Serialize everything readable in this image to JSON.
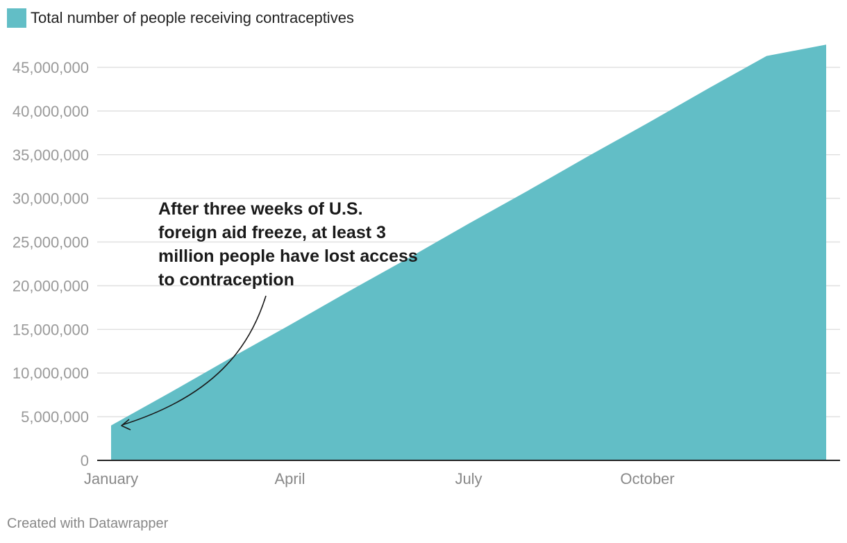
{
  "legend": {
    "label": "Total number of people receiving contraceptives"
  },
  "footer": "Created with Datawrapper",
  "annotation": "After three weeks of U.S. foreign aid freeze, at least 3 million people have lost access to contraception",
  "colors": {
    "area": "#62bec6",
    "grid": "#e0e0e0",
    "axis": "#222222",
    "tick_text": "#999999"
  },
  "chart_data": {
    "type": "area",
    "series": [
      {
        "name": "Total number of people receiving contraceptives",
        "x": [
          0,
          1,
          2,
          3,
          4,
          5,
          6,
          7,
          8,
          9,
          10,
          11,
          12
        ],
        "values": [
          4000000,
          7800000,
          11700000,
          15500000,
          19400000,
          23200000,
          27100000,
          30900000,
          34800000,
          38600000,
          42500000,
          46300000,
          47600000
        ]
      }
    ],
    "x_ticks": [
      {
        "label": "January",
        "x": 0
      },
      {
        "label": "April",
        "x": 3
      },
      {
        "label": "July",
        "x": 6
      },
      {
        "label": "October",
        "x": 9
      }
    ],
    "xlim": [
      0,
      12
    ],
    "ylim": [
      0,
      45000000
    ],
    "y_ticks": [
      {
        "value": 0,
        "label": "0"
      },
      {
        "value": 5000000,
        "label": "5,000,000"
      },
      {
        "value": 10000000,
        "label": "10,000,000"
      },
      {
        "value": 15000000,
        "label": "15,000,000"
      },
      {
        "value": 20000000,
        "label": "20,000,000"
      },
      {
        "value": 25000000,
        "label": "25,000,000"
      },
      {
        "value": 30000000,
        "label": "30,000,000"
      },
      {
        "value": 35000000,
        "label": "35,000,000"
      },
      {
        "value": 40000000,
        "label": "40,000,000"
      },
      {
        "value": 45000000,
        "label": "45,000,000"
      }
    ],
    "grid": true,
    "legend_position": "top-left"
  }
}
